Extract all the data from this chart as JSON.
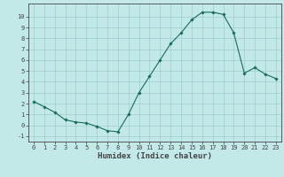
{
  "x": [
    0,
    1,
    2,
    3,
    4,
    5,
    6,
    7,
    8,
    9,
    10,
    11,
    12,
    13,
    14,
    15,
    16,
    17,
    18,
    19,
    20,
    21,
    22,
    23
  ],
  "y": [
    2.2,
    1.7,
    1.2,
    0.5,
    0.3,
    0.2,
    -0.1,
    -0.5,
    -0.6,
    1.0,
    3.0,
    4.5,
    6.0,
    7.5,
    8.5,
    9.7,
    10.4,
    10.4,
    10.2,
    8.5,
    4.8,
    5.3,
    4.7,
    4.3
  ],
  "xlim": [
    -0.5,
    23.5
  ],
  "ylim": [
    -1.5,
    11.2
  ],
  "yticks": [
    -1,
    0,
    1,
    2,
    3,
    4,
    5,
    6,
    7,
    8,
    9,
    10
  ],
  "xticks": [
    0,
    1,
    2,
    3,
    4,
    5,
    6,
    7,
    8,
    9,
    10,
    11,
    12,
    13,
    14,
    15,
    16,
    17,
    18,
    19,
    20,
    21,
    22,
    23
  ],
  "xlabel": "Humidex (Indice chaleur)",
  "line_color": "#1a6b5a",
  "marker": "D",
  "marker_size": 1.8,
  "bg_color": "#c2e8e8",
  "grid_color": "#9ecece",
  "axis_color": "#444444",
  "tick_label_fontsize": 5.0,
  "xlabel_fontsize": 6.5,
  "linewidth": 0.8
}
